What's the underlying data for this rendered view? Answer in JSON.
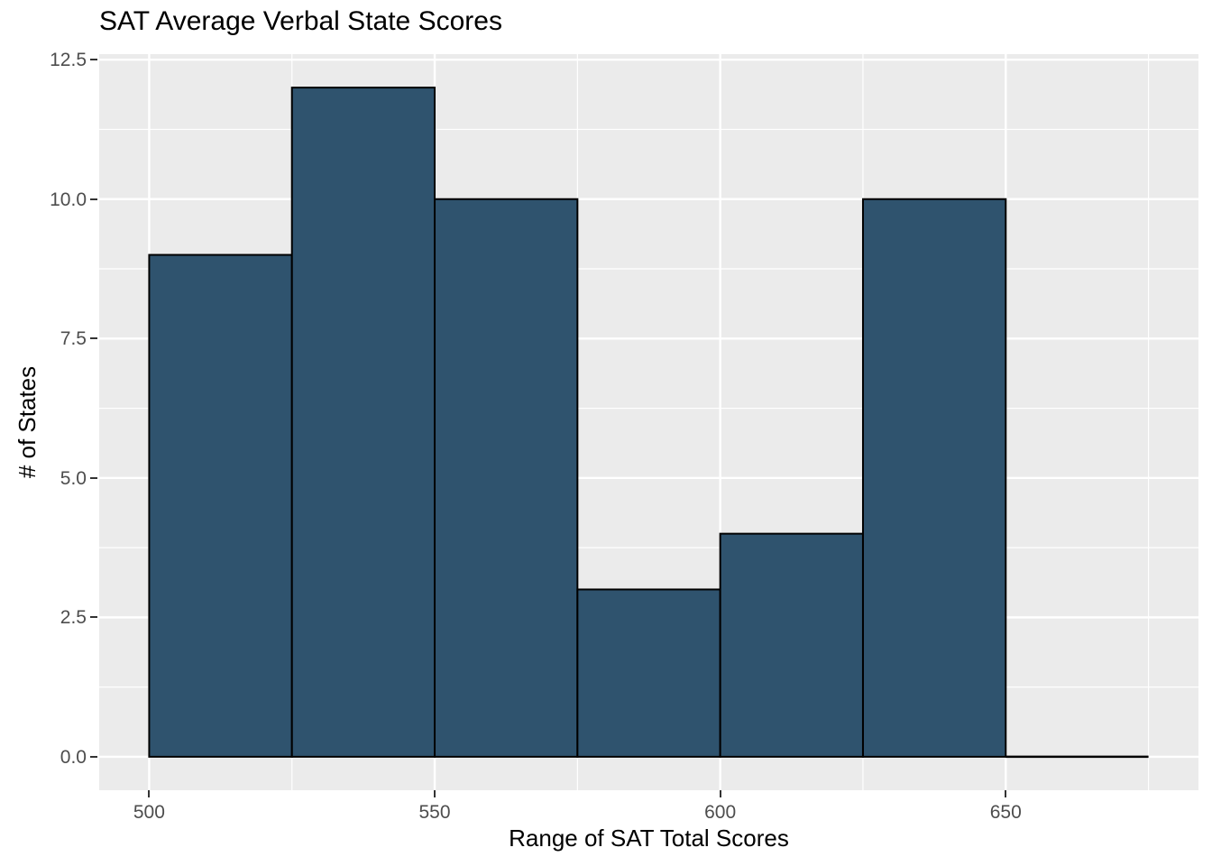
{
  "title": "SAT Average Verbal State Scores",
  "chart_data": {
    "type": "histogram",
    "title": "SAT Average Verbal State Scores",
    "xlabel": "Range of SAT Total Scores",
    "ylabel": "# of States",
    "bin_width": 25,
    "bin_edges": [
      500,
      525,
      550,
      575,
      600,
      625,
      650,
      675
    ],
    "counts": [
      9,
      12,
      10,
      3,
      4,
      10,
      0
    ],
    "x_ticks": [
      {
        "value": 500,
        "label": "500"
      },
      {
        "value": 550,
        "label": "550"
      },
      {
        "value": 600,
        "label": "600"
      },
      {
        "value": 650,
        "label": "650"
      }
    ],
    "y_ticks": [
      {
        "value": 0,
        "label": "0.0"
      },
      {
        "value": 2.5,
        "label": "2.5"
      },
      {
        "value": 5,
        "label": "5.0"
      },
      {
        "value": 7.5,
        "label": "7.5"
      },
      {
        "value": 10,
        "label": "10.0"
      },
      {
        "value": 12.5,
        "label": "12.5"
      }
    ],
    "x_minor_ticks": [
      525,
      575,
      625,
      675
    ],
    "y_minor_ticks": [
      1.25,
      3.75,
      6.25,
      8.75,
      11.25
    ],
    "x_expand_mult": 0.05,
    "y_expand_mult": 0.05,
    "ylim_data": [
      0,
      12
    ],
    "grid": true,
    "legend_position": "none",
    "colors": {
      "bar_fill": "#2F536E",
      "bar_stroke": "#000000",
      "panel_bg": "#EBEBEB",
      "grid_major": "#FFFFFF",
      "grid_minor": "#FFFFFF",
      "tick_label": "#4D4D4D",
      "tick_mark": "#333333",
      "title_color": "#000000",
      "axis_title_color": "#000000",
      "page_bg": "#FFFFFF"
    }
  }
}
